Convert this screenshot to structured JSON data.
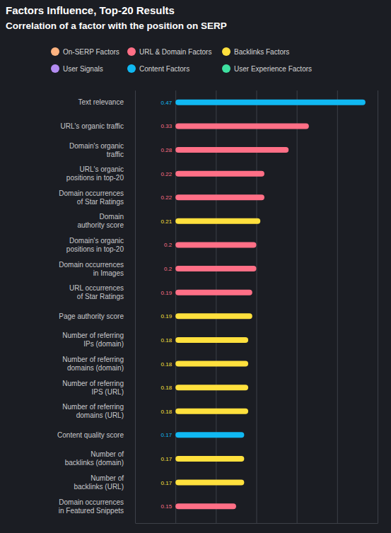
{
  "chart_data": {
    "type": "bar",
    "orientation": "horizontal",
    "title": "Factors Influence, Top-20 Results",
    "subtitle": "Correlation of a factor with the position on SERP",
    "categories": [
      "Text relevance",
      "URL's organic traffic",
      "Domain's organic\ntraffic",
      "URL's organic\npositions in top-20",
      "Domain occurrences\nof Star Ratings",
      "Domain\nauthority score",
      "Domain's organic\npositions in top-20",
      "Domain occurrences\nin Images",
      "URL occurrences\nof Star Ratings",
      "Page authority score",
      "Number of referring\nIPs (domain)",
      "Number of referring\ndomains (domain)",
      "Number of referring\nIPS (URL)",
      "Number of referring\ndomains (URL)",
      "Content quality score",
      "Number of\nbacklinks (domain)",
      "Number of\nbacklinks (URL)",
      "Domain occurrences\nin Featured Snippets"
    ],
    "series": [
      {
        "name": "On-SERP Factors",
        "color": "#ffb380",
        "values": [
          null,
          null,
          null,
          null,
          null,
          null,
          null,
          null,
          null,
          null,
          null,
          null,
          null,
          null,
          null,
          null,
          null,
          null
        ]
      },
      {
        "name": "URL & Domain Factors",
        "color": "#ff6f86",
        "values": [
          null,
          0.33,
          0.28,
          0.22,
          0.22,
          null,
          0.2,
          0.2,
          0.19,
          null,
          null,
          null,
          null,
          null,
          null,
          null,
          null,
          0.15
        ]
      },
      {
        "name": "Backlinks Factors",
        "color": "#ffe03d",
        "values": [
          null,
          null,
          null,
          null,
          null,
          0.21,
          null,
          null,
          null,
          0.19,
          0.18,
          0.18,
          0.18,
          0.18,
          null,
          0.17,
          0.17,
          null
        ]
      },
      {
        "name": "User Signals",
        "color": "#b48cf2",
        "values": [
          null,
          null,
          null,
          null,
          null,
          null,
          null,
          null,
          null,
          null,
          null,
          null,
          null,
          null,
          null,
          null,
          null,
          null
        ]
      },
      {
        "name": "Content Factors",
        "color": "#10b8f2",
        "values": [
          0.47,
          null,
          null,
          null,
          null,
          null,
          null,
          null,
          null,
          null,
          null,
          null,
          null,
          null,
          0.17,
          null,
          null,
          null
        ]
      },
      {
        "name": "User Experience Factors",
        "color": "#3ee0a0",
        "values": [
          null,
          null,
          null,
          null,
          null,
          null,
          null,
          null,
          null,
          null,
          null,
          null,
          null,
          null,
          null,
          null,
          null,
          null
        ]
      }
    ],
    "xlim": [
      -0.1,
      0.5
    ],
    "xticks": [
      -0.1,
      0,
      0.1,
      0.2,
      0.3,
      0.4,
      0.5
    ],
    "grid": true,
    "tick_labels": false,
    "data_labels": true,
    "legend": "top"
  }
}
